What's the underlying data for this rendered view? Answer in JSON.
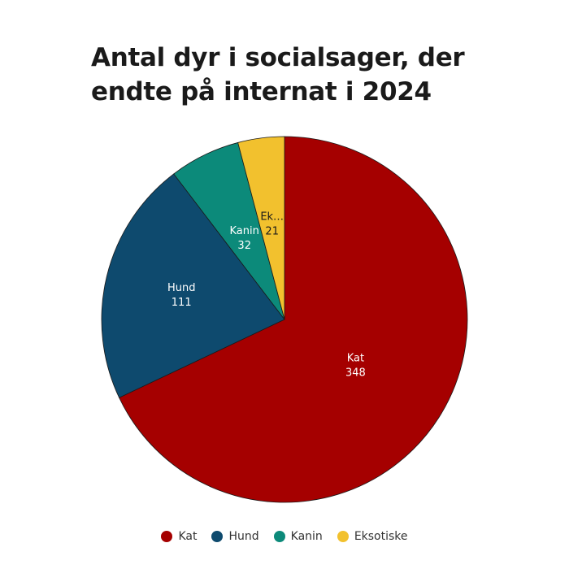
{
  "chart_data": {
    "type": "pie",
    "title_lines": [
      "Antal dyr i socialsager, der",
      "endte på internat i 2024"
    ],
    "slices": [
      {
        "label": "Kat",
        "display_label": "Kat",
        "value": 348,
        "color": "#a50000",
        "text_color": "#ffffff"
      },
      {
        "label": "Hund",
        "display_label": "Hund",
        "value": 111,
        "color": "#0e4a6e",
        "text_color": "#ffffff"
      },
      {
        "label": "Kanin",
        "display_label": "Kanin",
        "value": 32,
        "color": "#0c8a7a",
        "text_color": "#ffffff"
      },
      {
        "label": "Eksotiske",
        "display_label": "Ek…",
        "value": 21,
        "color": "#f2c12e",
        "text_color": "#1a1a1a"
      }
    ],
    "start": "top",
    "direction": "clockwise",
    "legend_position": "bottom"
  }
}
